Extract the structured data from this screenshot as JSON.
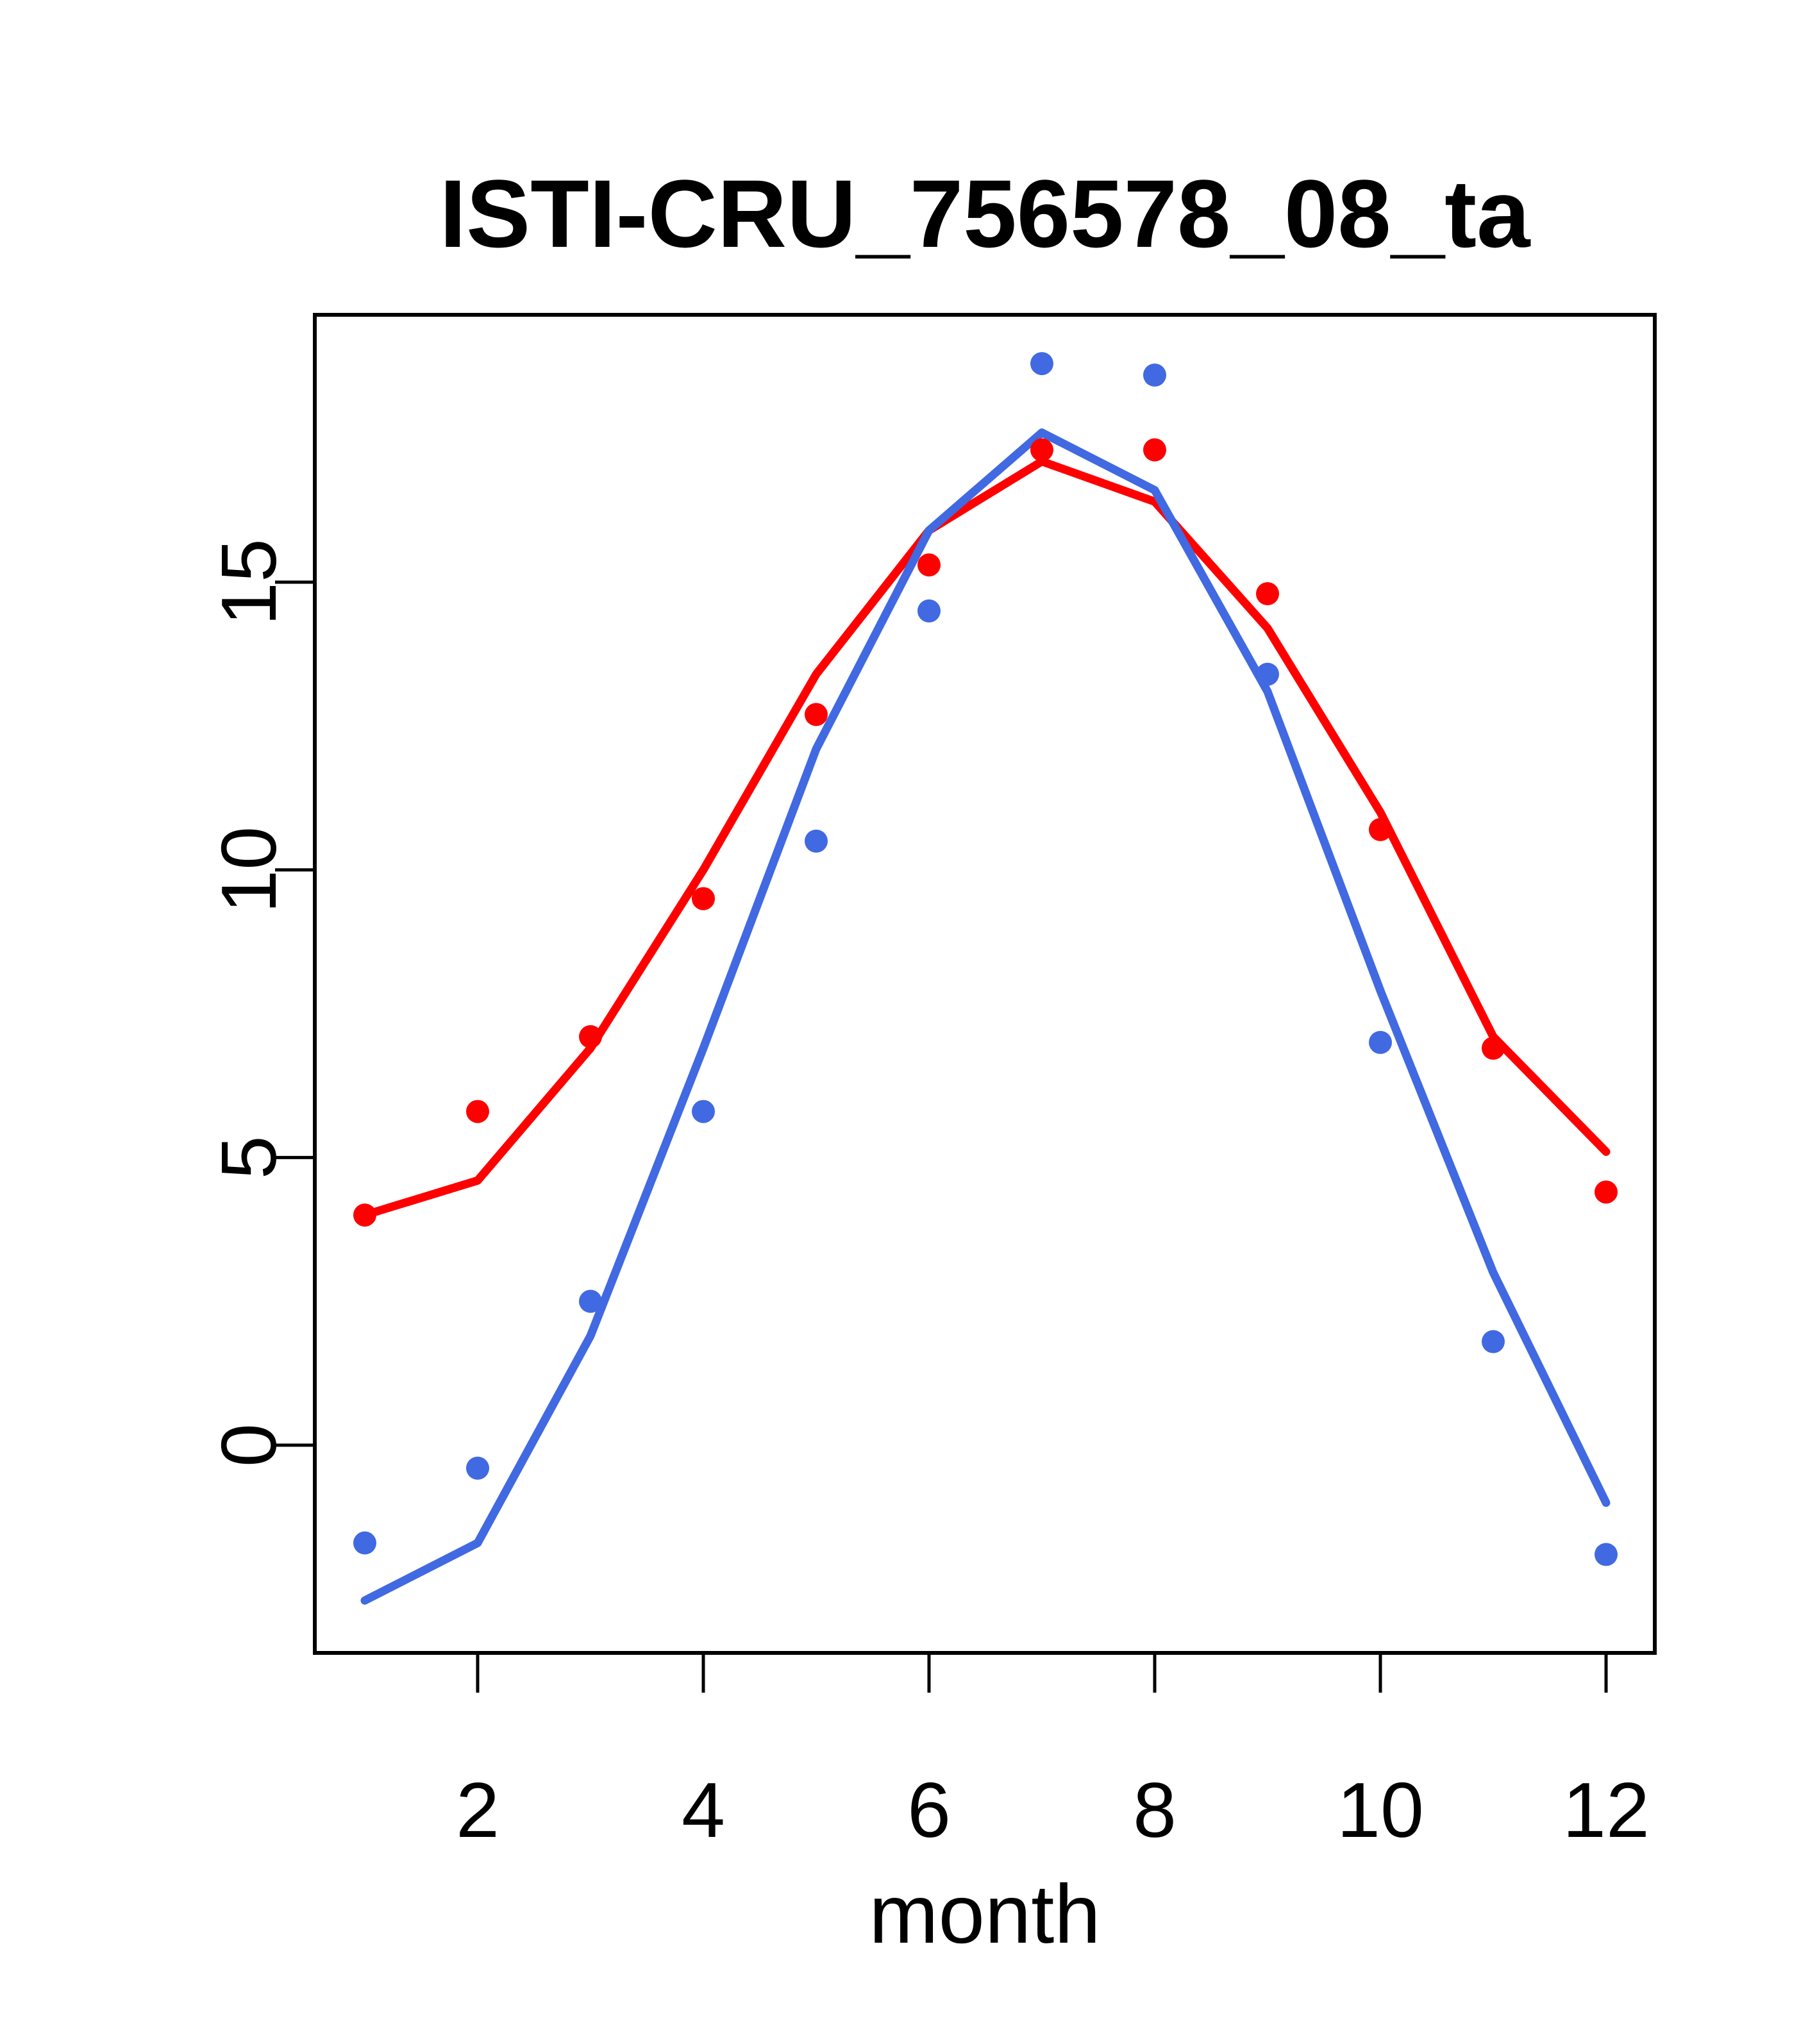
{
  "title": "ISTI-CRU_756578_08_ta",
  "chart_data": {
    "type": "line",
    "subtype": "lines-and-scatter-overlay",
    "title": "ISTI-CRU_756578_08_ta",
    "xlabel": "month",
    "ylabel": "",
    "x": [
      1,
      2,
      3,
      4,
      5,
      6,
      7,
      8,
      9,
      10,
      11,
      12
    ],
    "x_tick_labels": [
      "2",
      "4",
      "6",
      "8",
      "10",
      "12"
    ],
    "x_ticks": [
      2,
      4,
      6,
      8,
      10,
      12
    ],
    "y_ticks": [
      0,
      5,
      10,
      15
    ],
    "y_tick_labels": [
      "0",
      "5",
      "10",
      "15"
    ],
    "xlim": [
      0.56,
      12.43
    ],
    "ylim": [
      -3.6,
      19.6
    ],
    "grid": "off",
    "legend": "none",
    "colors": {
      "red_series": "#FF0000",
      "blue_series": "#4169E1",
      "axis": "#000000",
      "background": "#FFFFFF"
    },
    "series": [
      {
        "name": "red-line-smoothed",
        "kind": "line",
        "color": "#FF0000",
        "values": [
          4.0,
          4.6,
          6.9,
          10.0,
          13.4,
          15.9,
          17.1,
          16.4,
          14.2,
          11.0,
          7.1,
          5.1
        ]
      },
      {
        "name": "blue-line-smoothed",
        "kind": "line",
        "color": "#4169E1",
        "values": [
          -2.7,
          -1.7,
          1.9,
          6.9,
          12.1,
          15.9,
          17.6,
          16.6,
          13.1,
          7.9,
          3.0,
          -1.0
        ]
      },
      {
        "name": "red-points-monthly",
        "kind": "points",
        "color": "#FF0000",
        "values": [
          4.0,
          5.8,
          7.1,
          9.5,
          12.7,
          15.3,
          17.3,
          17.3,
          14.8,
          10.7,
          6.9,
          4.4
        ]
      },
      {
        "name": "blue-points-monthly",
        "kind": "points",
        "color": "#4169E1",
        "values": [
          -1.7,
          -0.4,
          2.5,
          5.8,
          10.5,
          14.5,
          18.8,
          18.6,
          13.4,
          7.0,
          1.8,
          -1.9
        ]
      }
    ]
  }
}
